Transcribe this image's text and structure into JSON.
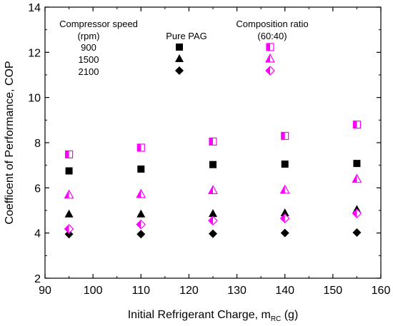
{
  "chart_data": {
    "type": "scatter",
    "xlabel": {
      "main": "Initial Refrigerant Charge, m",
      "sub": "RC",
      "unit": " (g)"
    },
    "ylabel": "Coefficent of Performance, COP",
    "xlim": [
      90,
      160
    ],
    "ylim": [
      2,
      14
    ],
    "x_ticks": [
      90,
      100,
      110,
      120,
      130,
      140,
      150,
      160
    ],
    "y_ticks": [
      2,
      4,
      6,
      8,
      10,
      12,
      14
    ],
    "grid": false,
    "x": [
      95,
      110,
      125,
      140,
      155
    ],
    "legend_header": {
      "speed_title": "Compressor speed",
      "speed_unit": "(rpm)",
      "group_pure": "Pure PAG",
      "group_comp": "Composition ratio",
      "group_comp_ratio": "(60:40)"
    },
    "speeds": [
      "900",
      "1500",
      "2100"
    ],
    "colors": {
      "pure": "#000000",
      "composition": "#ff00ff"
    },
    "series": [
      {
        "group": "pure",
        "speed": "900",
        "marker": "square",
        "values": [
          6.75,
          6.83,
          7.03,
          7.05,
          7.08
        ]
      },
      {
        "group": "pure",
        "speed": "1500",
        "marker": "triangle",
        "values": [
          4.85,
          4.85,
          4.87,
          4.9,
          5.05
        ]
      },
      {
        "group": "pure",
        "speed": "2100",
        "marker": "diamond",
        "values": [
          3.95,
          3.95,
          3.97,
          4.0,
          4.02
        ]
      },
      {
        "group": "composition",
        "speed": "900",
        "marker": "square-half",
        "values": [
          7.48,
          7.78,
          8.05,
          8.3,
          8.8
        ]
      },
      {
        "group": "composition",
        "speed": "1500",
        "marker": "triangle-half",
        "values": [
          5.7,
          5.73,
          5.9,
          5.92,
          6.4
        ]
      },
      {
        "group": "composition",
        "speed": "2100",
        "marker": "diamond-half",
        "values": [
          4.18,
          4.38,
          4.55,
          4.65,
          4.87
        ]
      }
    ]
  }
}
